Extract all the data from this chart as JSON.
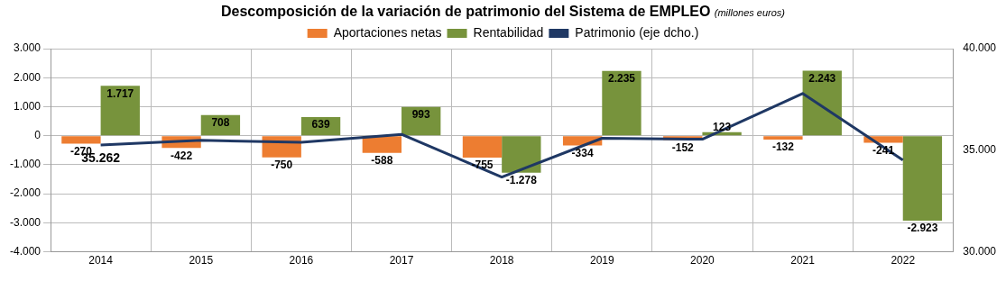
{
  "chart_data": {
    "type": "bar",
    "title": "Descomposición de la variación de patrimonio del Sistema de EMPLEO",
    "subtitle": "(millones euros)",
    "categories": [
      "2014",
      "2015",
      "2016",
      "2017",
      "2018",
      "2019",
      "2020",
      "2021",
      "2022"
    ],
    "series": [
      {
        "name": "Aportaciones netas",
        "color": "#ed7d31",
        "values": [
          -270,
          -422,
          -750,
          -588,
          -755,
          -334,
          -152,
          -132,
          -241
        ],
        "value_labels": [
          "-270",
          "-422",
          "-750",
          "-588",
          "-755",
          "-334",
          "-152",
          "-132",
          "-241"
        ]
      },
      {
        "name": "Rentabilidad",
        "color": "#77933c",
        "values": [
          1717,
          708,
          639,
          993,
          -1278,
          2235,
          123,
          2243,
          -2923
        ],
        "value_labels": [
          "1.717",
          "708",
          "639",
          "993",
          "-1.278",
          "2.235",
          "123",
          "2.243",
          "-2.923"
        ]
      },
      {
        "name": "Patrimonio (eje dcho.)",
        "type": "line",
        "axis": "y2",
        "color": "#1f3864",
        "marker": "none",
        "values": [
          35262,
          35490,
          35390,
          35780,
          33680,
          35590,
          35540,
          37790,
          34510
        ],
        "value_labels": [
          "35.262",
          null,
          null,
          null,
          null,
          null,
          null,
          null,
          null
        ]
      }
    ],
    "ylim": [
      -4000,
      3000
    ],
    "yticks": [
      {
        "value": -4000,
        "label": "-4.000"
      },
      {
        "value": -3000,
        "label": "-3.000"
      },
      {
        "value": -2000,
        "label": "-2.000"
      },
      {
        "value": -1000,
        "label": "-1.000"
      },
      0,
      {
        "value": 1000,
        "label": "1.000"
      },
      {
        "value": 2000,
        "label": "2.000"
      },
      {
        "value": 3000,
        "label": "3.000"
      }
    ],
    "y2lim": [
      30000,
      40000
    ],
    "y2ticks": [
      {
        "value": 30000,
        "label": "30.000"
      },
      {
        "value": 35000,
        "label": "35.000"
      },
      {
        "value": 40000,
        "label": "40.000"
      }
    ],
    "grid": true,
    "legend": "top"
  }
}
